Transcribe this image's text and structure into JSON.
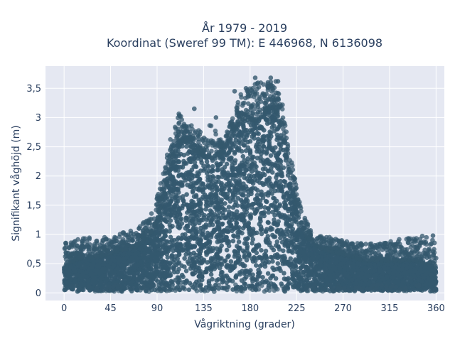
{
  "chart_data": {
    "type": "scatter",
    "title": "År 1979 - 2019",
    "subtitle": "Koordinat (Sweref 99 TM): E 446968, N 6136098",
    "xlabel": "Vågriktning (grader)",
    "ylabel": "Signifikant våghöjd (m)",
    "xlim": [
      -18,
      368
    ],
    "ylim": [
      -0.13,
      3.88
    ],
    "x_ticks": [
      0,
      45,
      90,
      135,
      180,
      225,
      270,
      315,
      360
    ],
    "x_tick_labels": [
      "0",
      "45",
      "90",
      "135",
      "180",
      "225",
      "270",
      "315",
      "360"
    ],
    "y_ticks": [
      0,
      0.5,
      1,
      1.5,
      2,
      2.5,
      3,
      3.5
    ],
    "y_tick_labels": [
      "0",
      "0,5",
      "1",
      "1,5",
      "2",
      "2,5",
      "3",
      "3,5"
    ],
    "grid": true,
    "marker_color": "#34586e",
    "background_color": "#e5e8f2",
    "envelope": {
      "direction": [
        0,
        10,
        20,
        30,
        40,
        50,
        60,
        70,
        80,
        85,
        90,
        95,
        100,
        105,
        110,
        115,
        120,
        125,
        130,
        135,
        140,
        145,
        150,
        155,
        160,
        165,
        170,
        175,
        180,
        185,
        190,
        195,
        200,
        205,
        210,
        215,
        220,
        225,
        230,
        235,
        240,
        245,
        250,
        260,
        270,
        280,
        290,
        300,
        310,
        320,
        330,
        340,
        350,
        360
      ],
      "core_top": [
        0.45,
        0.55,
        0.6,
        0.6,
        0.65,
        0.7,
        0.75,
        0.8,
        0.95,
        1.05,
        1.25,
        1.55,
        1.9,
        2.3,
        2.55,
        2.6,
        2.55,
        2.45,
        2.4,
        2.35,
        2.3,
        2.3,
        2.35,
        2.45,
        2.6,
        2.75,
        2.9,
        2.95,
        2.95,
        2.95,
        3.0,
        3.1,
        3.2,
        3.1,
        2.8,
        2.35,
        1.85,
        1.45,
        1.15,
        0.95,
        0.85,
        0.8,
        0.75,
        0.7,
        0.65,
        0.6,
        0.55,
        0.55,
        0.55,
        0.55,
        0.55,
        0.55,
        0.5,
        0.45
      ],
      "outer_top": [
        0.85,
        0.9,
        0.95,
        0.95,
        0.95,
        1.0,
        1.05,
        1.1,
        1.25,
        1.4,
        1.65,
        2.0,
        2.4,
        2.8,
        3.15,
        2.95,
        2.9,
        2.85,
        2.8,
        2.75,
        2.85,
        3.0,
        2.65,
        2.6,
        2.9,
        3.15,
        3.5,
        3.5,
        3.55,
        3.6,
        3.7,
        3.6,
        3.68,
        3.62,
        3.4,
        2.9,
        2.35,
        1.85,
        1.45,
        1.2,
        1.1,
        1.05,
        1.0,
        0.95,
        0.9,
        0.85,
        0.85,
        0.85,
        0.85,
        0.9,
        0.95,
        0.95,
        1.0,
        0.9
      ]
    },
    "notable_points": [
      {
        "x": 126,
        "y": 3.15
      },
      {
        "x": 147,
        "y": 3.0
      },
      {
        "x": 165,
        "y": 3.45
      },
      {
        "x": 176,
        "y": 3.5
      },
      {
        "x": 185,
        "y": 3.68
      },
      {
        "x": 200,
        "y": 3.68
      },
      {
        "x": 207,
        "y": 3.62
      },
      {
        "x": 357,
        "y": 0.98
      }
    ]
  }
}
